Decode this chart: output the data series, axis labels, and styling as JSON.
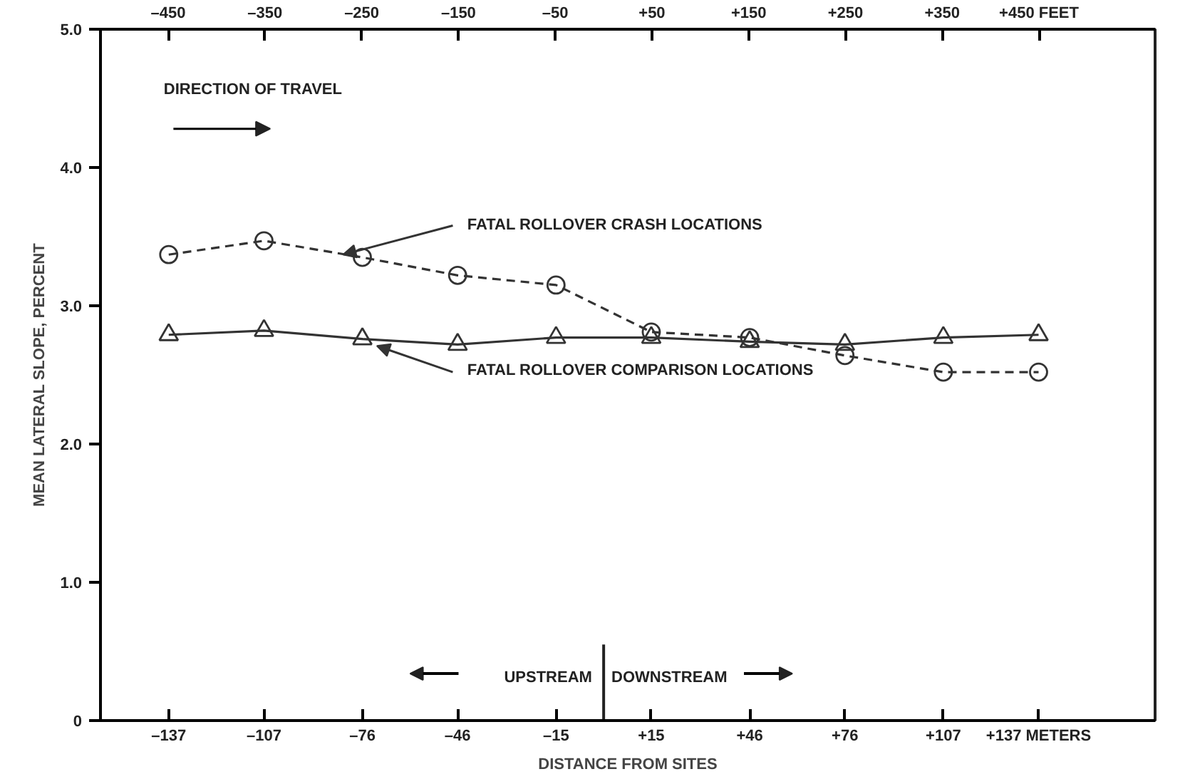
{
  "chart_data": {
    "type": "line",
    "xlabel": "DISTANCE FROM SITES",
    "ylabel": "MEAN LATERAL SLOPE, PERCENT",
    "x": [
      -137,
      -107,
      -76,
      -46,
      -15,
      15,
      46,
      76,
      107,
      137
    ],
    "series": [
      {
        "name": "FATAL ROLLOVER CRASH LOCATIONS",
        "color": "#333333",
        "marker": "circle",
        "line_style": "dashed",
        "values": [
          3.37,
          3.47,
          3.35,
          3.22,
          3.15,
          2.81,
          2.77,
          2.64,
          2.52,
          2.52
        ]
      },
      {
        "name": "FATAL ROLLOVER COMPARISON LOCATIONS",
        "color": "#333333",
        "marker": "triangle",
        "line_style": "solid",
        "values": [
          2.79,
          2.82,
          2.76,
          2.72,
          2.77,
          2.77,
          2.74,
          2.72,
          2.77,
          2.79
        ]
      }
    ],
    "xlim": [
      -158.5,
      173.7
    ],
    "ylim": [
      0,
      5
    ],
    "xticks": [
      {
        "value": -137,
        "label": "–137"
      },
      {
        "value": -107,
        "label": "–107"
      },
      {
        "value": -76,
        "label": "–76"
      },
      {
        "value": -46,
        "label": "–46"
      },
      {
        "value": -15,
        "label": "–15"
      },
      {
        "value": 15,
        "label": "+15"
      },
      {
        "value": 46,
        "label": "+46"
      },
      {
        "value": 76,
        "label": "+76"
      },
      {
        "value": 107,
        "label": "+107"
      },
      {
        "value": 137,
        "label": "+137 METERS"
      }
    ],
    "x2lim": [
      -520,
      570
    ],
    "x2ticks": [
      {
        "value": -450,
        "label": "–450"
      },
      {
        "value": -350,
        "label": "–350"
      },
      {
        "value": -250,
        "label": "–250"
      },
      {
        "value": -150,
        "label": "–150"
      },
      {
        "value": -50,
        "label": "–50"
      },
      {
        "value": 50,
        "label": "+50"
      },
      {
        "value": 150,
        "label": "+150"
      },
      {
        "value": 250,
        "label": "+250"
      },
      {
        "value": 350,
        "label": "+350"
      },
      {
        "value": 450,
        "label": "+450 FEET"
      }
    ],
    "yticks": [
      0,
      {
        "value": 1,
        "label": "1.0"
      },
      {
        "value": 2,
        "label": "2.0"
      },
      {
        "value": 3,
        "label": "3.0"
      },
      {
        "value": 4,
        "label": "4.0"
      },
      {
        "value": 5,
        "label": "5.0"
      }
    ],
    "ref_lines": [
      {
        "axis": "x",
        "value": 0,
        "label": null,
        "color": "#222222"
      }
    ],
    "annotations": [
      "DIRECTION OF TRAVEL",
      "UPSTREAM",
      "DOWNSTREAM"
    ],
    "grid": false
  }
}
